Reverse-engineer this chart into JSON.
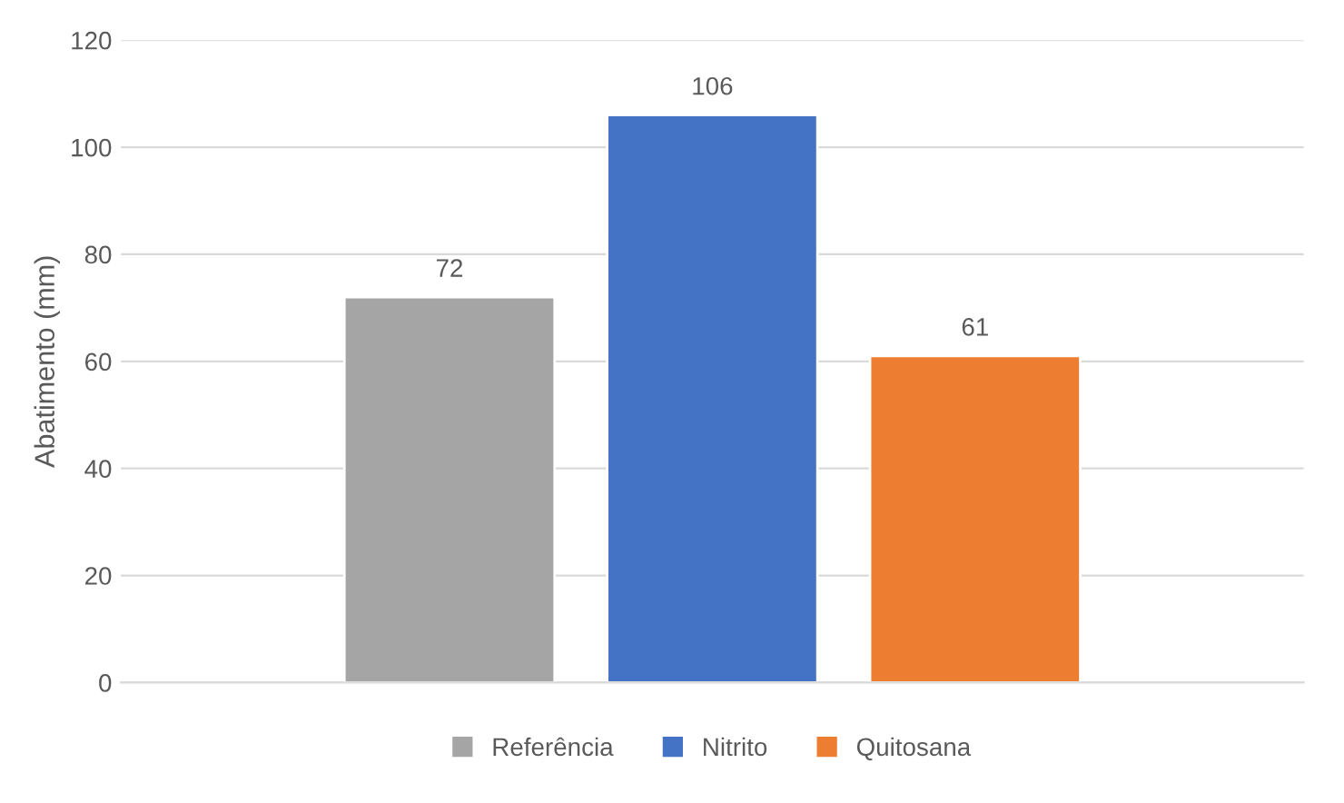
{
  "chart_data": {
    "type": "bar",
    "ylabel": "Abatimento (mm)",
    "categories": [
      null
    ],
    "series": [
      {
        "name": "Referência",
        "color": "#a5a5a5",
        "values": [
          72
        ]
      },
      {
        "name": "Nitrito",
        "color": "#4472c4",
        "values": [
          106
        ]
      },
      {
        "name": "Quitosana",
        "color": "#ed7d31",
        "values": [
          61
        ]
      }
    ],
    "ylim": [
      0,
      120
    ],
    "yticks": [
      0,
      20,
      40,
      60,
      80,
      100,
      120
    ],
    "grid": "y",
    "legend": "bottom",
    "data_labels": true
  }
}
